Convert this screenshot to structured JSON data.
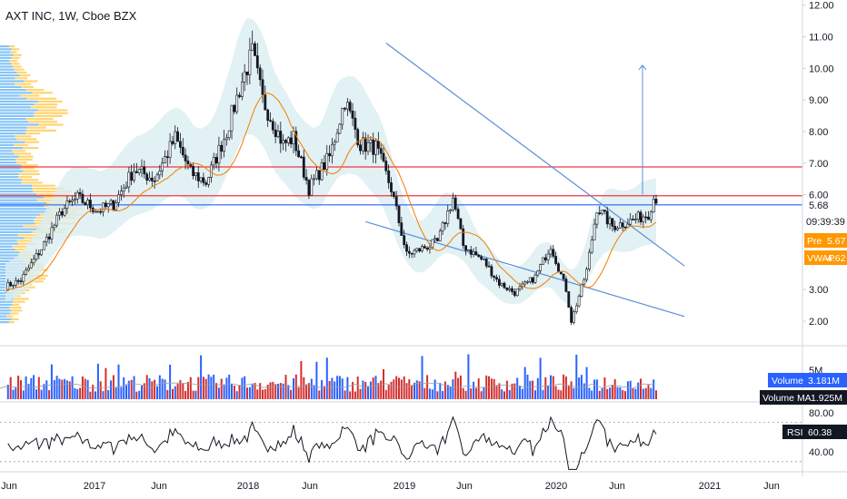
{
  "header": {
    "symbol_title": "AXT INC, 1W, Cboe BZX"
  },
  "chart_data": [
    {
      "type": "candlestick",
      "title": "AXT INC, 1W, Cboe BZX",
      "ylim": [
        1.5,
        12.2
      ],
      "y_ticks": [
        "12.00",
        "11.00",
        "10.00",
        "9.00",
        "8.00",
        "7.00",
        "6.00",
        "3.00",
        "2.00"
      ],
      "x_tick_labels": [
        "Jun",
        "2017",
        "Jun",
        "2018",
        "Jun",
        "2019",
        "Jun",
        "2020",
        "Jun",
        "2021",
        "Jun"
      ],
      "time_range": [
        "2016-05",
        "2021-08"
      ],
      "price_path_keyframes": [
        [
          0,
          3.1
        ],
        [
          6,
          3.3
        ],
        [
          14,
          4.3
        ],
        [
          22,
          5.5
        ],
        [
          28,
          5.9
        ],
        [
          36,
          5.5
        ],
        [
          42,
          5.7
        ],
        [
          50,
          6.8
        ],
        [
          58,
          6.5
        ],
        [
          66,
          7.8
        ],
        [
          72,
          6.7
        ],
        [
          78,
          6.4
        ],
        [
          86,
          8.0
        ],
        [
          92,
          9.6
        ],
        [
          96,
          10.5
        ],
        [
          100,
          9.0
        ],
        [
          108,
          7.6
        ],
        [
          112,
          7.8
        ],
        [
          118,
          6.2
        ],
        [
          126,
          7.2
        ],
        [
          132,
          9.0
        ],
        [
          138,
          7.6
        ],
        [
          144,
          7.5
        ],
        [
          150,
          6.2
        ],
        [
          156,
          4.1
        ],
        [
          162,
          4.3
        ],
        [
          168,
          4.5
        ],
        [
          174,
          5.9
        ],
        [
          178,
          4.4
        ],
        [
          186,
          3.9
        ],
        [
          192,
          3.2
        ],
        [
          198,
          2.9
        ],
        [
          206,
          3.4
        ],
        [
          212,
          4.4
        ],
        [
          218,
          3.0
        ],
        [
          220,
          2.0
        ],
        [
          226,
          3.6
        ],
        [
          230,
          5.6
        ],
        [
          236,
          5.0
        ],
        [
          244,
          5.2
        ],
        [
          250,
          5.4
        ],
        [
          252,
          5.9
        ]
      ],
      "volume_ma_label": "Volume MA",
      "indicators": {
        "pre_market": {
          "label": "Pre",
          "value": "5.67"
        },
        "vwap": {
          "label": "VWAP",
          "value": "4.62"
        },
        "last_price": "5.68",
        "countdown": "09:39:39"
      },
      "horizontal_levels": [
        6.88,
        5.97,
        5.68
      ],
      "trendlines": [
        {
          "from": [
            148,
            10.8
          ],
          "to": [
            370,
            3.75
          ]
        },
        {
          "from": [
            140,
            5.15
          ],
          "to": [
            370,
            2.15
          ]
        }
      ],
      "target_arrow": {
        "x": 354,
        "from": 6.0,
        "to": 10.1
      },
      "volume_panel": {
        "tick": "5M",
        "volume": {
          "label": "Volume",
          "value": "3.181M"
        },
        "volume_ma": {
          "label": "Volume MA",
          "value": "1.925M"
        }
      },
      "rsi_panel": {
        "ticks": [
          "80.00",
          "40.00"
        ],
        "rsi": {
          "label": "RSI",
          "value": "60.38"
        },
        "overbought": 70,
        "oversold": 30
      },
      "colors": {
        "up": "#26a69a",
        "down": "#ef5350",
        "vwap": "#f57c00",
        "level": "#f23645",
        "trend": "#5b8dd9",
        "band": "#d9eef1",
        "rsi": "#131722",
        "vol_up": "#2962ff",
        "vol_down": "#d32f2f"
      }
    }
  ]
}
